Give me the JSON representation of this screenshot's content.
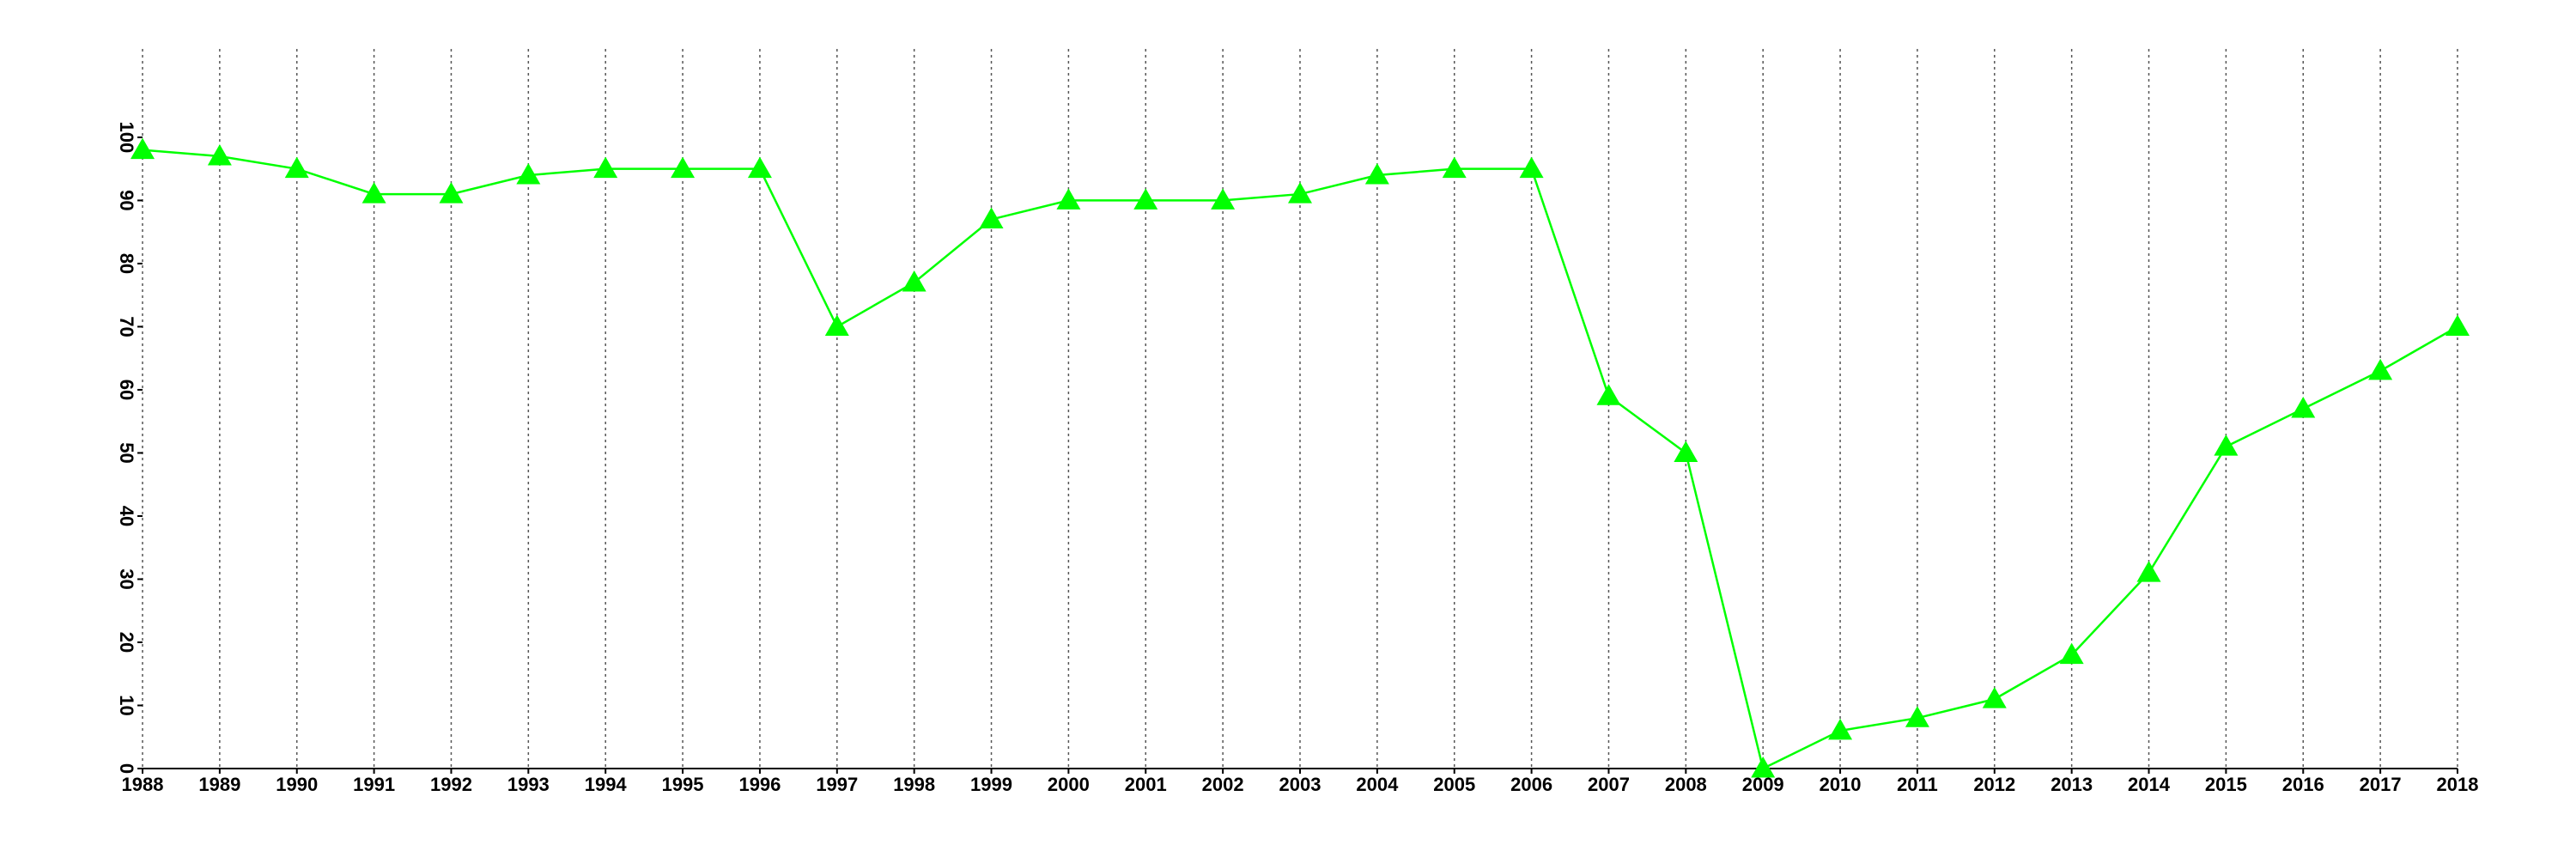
{
  "chart_data": {
    "type": "line",
    "x": [
      1988,
      1989,
      1990,
      1991,
      1992,
      1993,
      1994,
      1995,
      1996,
      1997,
      1998,
      1999,
      2000,
      2001,
      2002,
      2003,
      2004,
      2005,
      2006,
      2007,
      2008,
      2009,
      2010,
      2011,
      2012,
      2013,
      2014,
      2015,
      2016,
      2017,
      2018
    ],
    "values": [
      98,
      97,
      95,
      91,
      91,
      94,
      95,
      95,
      95,
      70,
      77,
      87,
      90,
      90,
      90,
      91,
      94,
      95,
      95,
      59,
      50,
      0,
      6,
      8,
      11,
      18,
      31,
      51,
      57,
      63,
      70
    ],
    "color": "#00ff00",
    "xlim": [
      1988,
      2018
    ],
    "xticks": [
      1988,
      1989,
      1990,
      1991,
      1992,
      1993,
      1994,
      1995,
      1996,
      1997,
      1998,
      1999,
      2000,
      2001,
      2002,
      2003,
      2004,
      2005,
      2006,
      2007,
      2008,
      2009,
      2010,
      2011,
      2012,
      2013,
      2014,
      2015,
      2016,
      2017,
      2018
    ],
    "ylim": [
      0,
      114
    ],
    "yticks": [
      0,
      10,
      20,
      30,
      40,
      50,
      60,
      70,
      80,
      90,
      100
    ],
    "grid": "x"
  }
}
